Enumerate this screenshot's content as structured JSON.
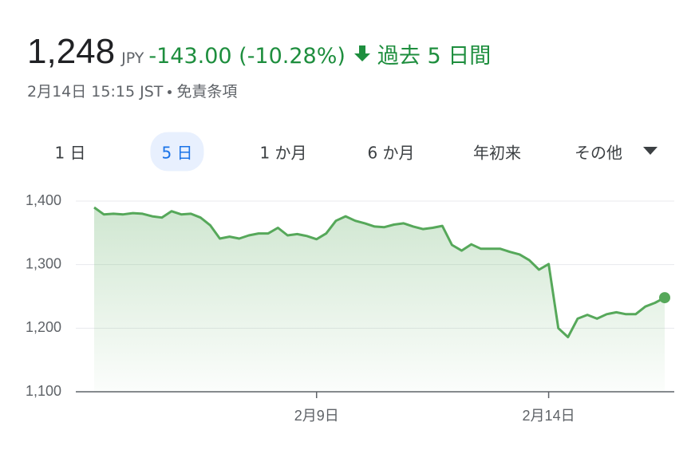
{
  "quote": {
    "price": "1,248",
    "currency": "JPY",
    "change": "-143.00 (-10.28%)",
    "period": "過去 5 日間",
    "timestamp": "2月14日 15:15 JST",
    "disclaimer": "免責条項"
  },
  "tabs": [
    "1 日",
    "5 日",
    "1 か月",
    "6 か月",
    "年初来",
    "その他"
  ],
  "chart_data": {
    "type": "line",
    "categories": [
      null,
      null,
      null,
      null,
      null,
      null,
      null,
      null,
      null,
      null,
      null,
      null,
      null,
      null,
      null,
      null,
      null,
      null,
      null,
      null,
      null,
      null,
      null,
      "2月9日",
      null,
      null,
      null,
      null,
      null,
      null,
      null,
      null,
      null,
      null,
      null,
      null,
      null,
      null,
      null,
      null,
      null,
      null,
      null,
      null,
      null,
      null,
      null,
      "2月14日",
      null,
      null,
      null,
      null,
      null,
      null,
      null,
      null,
      null,
      null,
      null,
      null
    ],
    "values": [
      1390,
      1379,
      1380,
      1379,
      1381,
      1380,
      1376,
      1374,
      1384,
      1379,
      1380,
      1374,
      1362,
      1341,
      1344,
      1341,
      1346,
      1349,
      1349,
      1358,
      1346,
      1348,
      1345,
      1340,
      1349,
      1369,
      1376,
      1369,
      1365,
      1360,
      1359,
      1363,
      1365,
      1360,
      1356,
      1358,
      1361,
      1331,
      1322,
      1332,
      1325,
      1325,
      1325,
      1320,
      1316,
      1307,
      1292,
      1301,
      1200,
      1186,
      1215,
      1221,
      1215,
      1222,
      1225,
      1222,
      1222,
      1234,
      1240,
      1248
    ],
    "color": "#56a85a",
    "ylim": [
      1100,
      1400
    ],
    "yticks": [
      {
        "value": 1100,
        "label": "1,100"
      },
      {
        "value": 1200,
        "label": "1,200"
      },
      {
        "value": 1300,
        "label": "1,300"
      },
      {
        "value": 1400,
        "label": "1,400"
      }
    ],
    "grid": true
  }
}
